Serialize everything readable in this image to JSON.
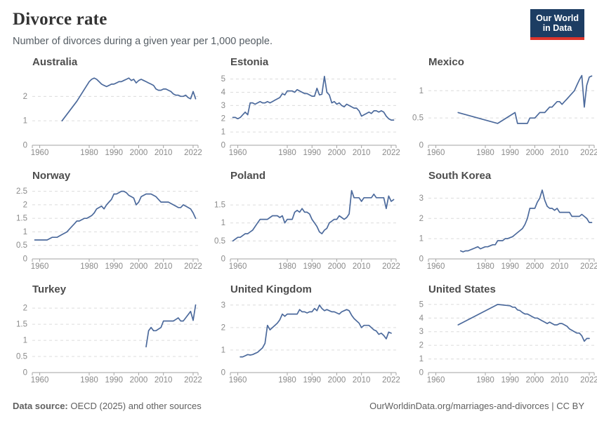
{
  "header": {
    "title": "Divorce rate",
    "subtitle": "Number of divorces during a given year per 1,000 people.",
    "logo": {
      "line1": "Our World",
      "line2": "in Data"
    }
  },
  "footer": {
    "source_label": "Data source:",
    "source_text": " OECD (2025) and other sources",
    "link": "OurWorldinData.org/marriages-and-divorces | CC BY"
  },
  "style": {
    "line_color": "#4C6A9C",
    "grid_color": "#dcdcdc",
    "axis_color": "#a3a3a3",
    "tick_label_color": "#8a8a8a",
    "logo_bg": "#1d3d63",
    "logo_accent": "#dc352c"
  },
  "chart_data": [
    {
      "type": "line",
      "title": "Australia",
      "xlim": [
        1957,
        2024
      ],
      "ylim": [
        0,
        2.9
      ],
      "xticks": [
        1960,
        1980,
        1990,
        2000,
        2010,
        2022
      ],
      "yticks": [
        0,
        1,
        2
      ],
      "x": [
        1969,
        1975,
        1980,
        1981,
        1982,
        1983,
        1984,
        1985,
        1986,
        1987,
        1988,
        1989,
        1990,
        1991,
        1992,
        1993,
        1994,
        1995,
        1996,
        1997,
        1998,
        1999,
        2000,
        2001,
        2002,
        2003,
        2004,
        2005,
        2006,
        2007,
        2008,
        2009,
        2010,
        2011,
        2012,
        2013,
        2014,
        2015,
        2016,
        2017,
        2018,
        2019,
        2020,
        2021,
        2022,
        2023
      ],
      "values": [
        1.0,
        1.8,
        2.6,
        2.7,
        2.75,
        2.7,
        2.6,
        2.5,
        2.45,
        2.4,
        2.45,
        2.5,
        2.5,
        2.55,
        2.6,
        2.6,
        2.65,
        2.7,
        2.75,
        2.65,
        2.7,
        2.55,
        2.65,
        2.7,
        2.65,
        2.6,
        2.55,
        2.5,
        2.45,
        2.3,
        2.25,
        2.25,
        2.3,
        2.3,
        2.25,
        2.2,
        2.1,
        2.05,
        2.05,
        2.0,
        2.0,
        2.05,
        1.95,
        1.9,
        2.2,
        1.9
      ]
    },
    {
      "type": "line",
      "title": "Estonia",
      "xlim": [
        1957,
        2024
      ],
      "ylim": [
        0,
        5.35
      ],
      "xticks": [
        1960,
        1980,
        1990,
        2000,
        2010,
        2022
      ],
      "yticks": [
        0,
        1,
        2,
        3,
        4,
        5
      ],
      "x": [
        1958,
        1959,
        1960,
        1961,
        1962,
        1963,
        1964,
        1965,
        1966,
        1967,
        1968,
        1969,
        1970,
        1971,
        1972,
        1973,
        1974,
        1975,
        1976,
        1977,
        1978,
        1979,
        1980,
        1981,
        1982,
        1983,
        1984,
        1985,
        1986,
        1987,
        1988,
        1989,
        1990,
        1991,
        1992,
        1993,
        1994,
        1995,
        1996,
        1997,
        1998,
        1999,
        2000,
        2001,
        2002,
        2003,
        2004,
        2005,
        2006,
        2007,
        2008,
        2009,
        2010,
        2011,
        2012,
        2013,
        2014,
        2015,
        2016,
        2017,
        2018,
        2019,
        2020,
        2021,
        2022,
        2023
      ],
      "values": [
        2.1,
        2.1,
        2.0,
        2.1,
        2.3,
        2.5,
        2.3,
        3.2,
        3.2,
        3.1,
        3.2,
        3.3,
        3.2,
        3.2,
        3.3,
        3.2,
        3.3,
        3.4,
        3.5,
        3.6,
        3.9,
        3.8,
        4.1,
        4.1,
        4.1,
        4.0,
        4.2,
        4.1,
        4.0,
        3.9,
        3.9,
        3.8,
        3.7,
        3.7,
        4.3,
        3.8,
        3.85,
        5.2,
        4.0,
        3.8,
        3.2,
        3.3,
        3.1,
        3.2,
        3.0,
        2.9,
        3.1,
        3.0,
        2.9,
        2.8,
        2.8,
        2.6,
        2.2,
        2.3,
        2.4,
        2.5,
        2.4,
        2.6,
        2.6,
        2.5,
        2.6,
        2.5,
        2.2,
        2.0,
        1.9,
        1.9
      ]
    },
    {
      "type": "line",
      "title": "Mexico",
      "xlim": [
        1957,
        2024
      ],
      "ylim": [
        0,
        1.3
      ],
      "xticks": [
        1960,
        1980,
        1990,
        2000,
        2010,
        2022
      ],
      "yticks": [
        0,
        0.5,
        1
      ],
      "x": [
        1969,
        1985,
        1992,
        1993,
        1997,
        1998,
        2000,
        2001,
        2002,
        2003,
        2004,
        2005,
        2006,
        2007,
        2008,
        2009,
        2010,
        2011,
        2012,
        2013,
        2014,
        2015,
        2016,
        2017,
        2018,
        2019,
        2020,
        2021,
        2022,
        2023
      ],
      "values": [
        0.6,
        0.4,
        0.6,
        0.4,
        0.4,
        0.5,
        0.5,
        0.55,
        0.6,
        0.6,
        0.6,
        0.65,
        0.7,
        0.7,
        0.75,
        0.8,
        0.8,
        0.75,
        0.8,
        0.85,
        0.9,
        0.95,
        1.0,
        1.1,
        1.2,
        1.28,
        0.7,
        1.1,
        1.25,
        1.27
      ]
    },
    {
      "type": "line",
      "title": "Norway",
      "xlim": [
        1957,
        2024
      ],
      "ylim": [
        0,
        2.62
      ],
      "xticks": [
        1960,
        1980,
        1990,
        2000,
        2010,
        2022
      ],
      "yticks": [
        0,
        0.5,
        1,
        1.5,
        2,
        2.5
      ],
      "x": [
        1958,
        1959,
        1960,
        1961,
        1962,
        1963,
        1964,
        1965,
        1966,
        1967,
        1968,
        1969,
        1970,
        1971,
        1972,
        1973,
        1974,
        1975,
        1976,
        1977,
        1978,
        1979,
        1980,
        1981,
        1982,
        1983,
        1984,
        1985,
        1986,
        1987,
        1988,
        1989,
        1990,
        1991,
        1992,
        1993,
        1994,
        1995,
        1996,
        1997,
        1998,
        1999,
        2000,
        2001,
        2002,
        2003,
        2004,
        2005,
        2006,
        2007,
        2008,
        2009,
        2010,
        2011,
        2012,
        2013,
        2014,
        2015,
        2016,
        2017,
        2018,
        2019,
        2020,
        2021,
        2022,
        2023
      ],
      "values": [
        0.7,
        0.7,
        0.7,
        0.7,
        0.7,
        0.7,
        0.75,
        0.8,
        0.8,
        0.8,
        0.85,
        0.9,
        0.95,
        1.0,
        1.1,
        1.2,
        1.3,
        1.4,
        1.4,
        1.45,
        1.5,
        1.5,
        1.55,
        1.6,
        1.7,
        1.85,
        1.9,
        1.95,
        1.85,
        2.0,
        2.1,
        2.2,
        2.4,
        2.4,
        2.45,
        2.5,
        2.5,
        2.45,
        2.35,
        2.3,
        2.25,
        2.0,
        2.1,
        2.3,
        2.35,
        2.4,
        2.4,
        2.4,
        2.35,
        2.3,
        2.2,
        2.1,
        2.1,
        2.1,
        2.1,
        2.05,
        2.0,
        1.95,
        1.9,
        1.9,
        2.0,
        1.95,
        1.9,
        1.85,
        1.7,
        1.5
      ]
    },
    {
      "type": "line",
      "title": "Poland",
      "xlim": [
        1957,
        2024
      ],
      "ylim": [
        0,
        1.97
      ],
      "xticks": [
        1960,
        1980,
        1990,
        2000,
        2010,
        2022
      ],
      "yticks": [
        0,
        0.5,
        1,
        1.5
      ],
      "x": [
        1958,
        1959,
        1960,
        1961,
        1962,
        1963,
        1964,
        1965,
        1966,
        1967,
        1968,
        1969,
        1970,
        1971,
        1972,
        1973,
        1974,
        1975,
        1976,
        1977,
        1978,
        1979,
        1980,
        1981,
        1982,
        1983,
        1984,
        1985,
        1986,
        1987,
        1988,
        1989,
        1990,
        1991,
        1992,
        1993,
        1994,
        1995,
        1996,
        1997,
        1998,
        1999,
        2000,
        2001,
        2002,
        2003,
        2004,
        2005,
        2006,
        2007,
        2008,
        2009,
        2010,
        2011,
        2012,
        2013,
        2014,
        2015,
        2016,
        2017,
        2018,
        2019,
        2020,
        2021,
        2022,
        2023
      ],
      "values": [
        0.5,
        0.55,
        0.6,
        0.6,
        0.65,
        0.7,
        0.7,
        0.75,
        0.8,
        0.9,
        1.0,
        1.1,
        1.1,
        1.1,
        1.1,
        1.15,
        1.2,
        1.2,
        1.2,
        1.15,
        1.2,
        1.0,
        1.1,
        1.1,
        1.1,
        1.3,
        1.35,
        1.3,
        1.4,
        1.3,
        1.3,
        1.25,
        1.1,
        1.0,
        0.9,
        0.75,
        0.7,
        0.8,
        0.85,
        1.0,
        1.05,
        1.1,
        1.1,
        1.2,
        1.15,
        1.1,
        1.15,
        1.25,
        1.9,
        1.7,
        1.7,
        1.7,
        1.6,
        1.7,
        1.7,
        1.7,
        1.7,
        1.8,
        1.7,
        1.7,
        1.7,
        1.7,
        1.4,
        1.75,
        1.6,
        1.65
      ]
    },
    {
      "type": "line",
      "title": "South Korea",
      "xlim": [
        1957,
        2024
      ],
      "ylim": [
        0,
        3.5
      ],
      "xticks": [
        1960,
        1980,
        1990,
        2000,
        2010,
        2022
      ],
      "yticks": [
        0,
        1,
        2,
        3
      ],
      "x": [
        1970,
        1971,
        1972,
        1973,
        1974,
        1975,
        1976,
        1977,
        1978,
        1979,
        1980,
        1981,
        1982,
        1983,
        1984,
        1985,
        1986,
        1987,
        1988,
        1989,
        1990,
        1991,
        1992,
        1993,
        1994,
        1995,
        1996,
        1997,
        1998,
        1999,
        2000,
        2001,
        2002,
        2003,
        2004,
        2005,
        2006,
        2007,
        2008,
        2009,
        2010,
        2011,
        2012,
        2013,
        2014,
        2015,
        2016,
        2017,
        2018,
        2019,
        2020,
        2021,
        2022,
        2023
      ],
      "values": [
        0.4,
        0.35,
        0.4,
        0.4,
        0.45,
        0.5,
        0.55,
        0.6,
        0.5,
        0.55,
        0.6,
        0.6,
        0.65,
        0.7,
        0.7,
        0.9,
        0.9,
        0.9,
        1.0,
        1.0,
        1.05,
        1.1,
        1.2,
        1.3,
        1.4,
        1.5,
        1.7,
        2.0,
        2.5,
        2.5,
        2.5,
        2.8,
        3.0,
        3.4,
        2.9,
        2.6,
        2.5,
        2.5,
        2.4,
        2.5,
        2.3,
        2.3,
        2.3,
        2.3,
        2.3,
        2.1,
        2.1,
        2.1,
        2.1,
        2.2,
        2.1,
        2.0,
        1.8,
        1.8
      ]
    },
    {
      "type": "line",
      "title": "Turkey",
      "xlim": [
        1957,
        2024
      ],
      "ylim": [
        0,
        2.2
      ],
      "xticks": [
        1960,
        1980,
        1990,
        2000,
        2010,
        2022
      ],
      "yticks": [
        0,
        0.5,
        1,
        1.5,
        2
      ],
      "x": [
        2003,
        2004,
        2005,
        2006,
        2007,
        2008,
        2009,
        2010,
        2011,
        2012,
        2013,
        2014,
        2015,
        2016,
        2017,
        2018,
        2019,
        2020,
        2021,
        2022,
        2023
      ],
      "values": [
        0.8,
        1.3,
        1.4,
        1.3,
        1.3,
        1.35,
        1.4,
        1.6,
        1.6,
        1.6,
        1.6,
        1.6,
        1.65,
        1.7,
        1.6,
        1.6,
        1.7,
        1.8,
        1.9,
        1.62,
        2.1
      ]
    },
    {
      "type": "line",
      "title": "United Kingdom",
      "xlim": [
        1957,
        2024
      ],
      "ylim": [
        0,
        3.15
      ],
      "xticks": [
        1960,
        1980,
        1990,
        2000,
        2010,
        2022
      ],
      "yticks": [
        0,
        1,
        2,
        3
      ],
      "x": [
        1961,
        1962,
        1963,
        1964,
        1965,
        1966,
        1967,
        1968,
        1969,
        1970,
        1971,
        1972,
        1973,
        1974,
        1975,
        1976,
        1977,
        1978,
        1979,
        1980,
        1981,
        1982,
        1983,
        1984,
        1985,
        1986,
        1987,
        1988,
        1989,
        1990,
        1991,
        1992,
        1993,
        1994,
        1995,
        1996,
        1997,
        1998,
        1999,
        2000,
        2001,
        2002,
        2003,
        2004,
        2005,
        2006,
        2007,
        2008,
        2009,
        2010,
        2011,
        2012,
        2013,
        2014,
        2015,
        2016,
        2017,
        2018,
        2019,
        2020,
        2021,
        2022
      ],
      "values": [
        0.7,
        0.7,
        0.75,
        0.8,
        0.78,
        0.8,
        0.85,
        0.9,
        1.0,
        1.1,
        1.3,
        2.1,
        1.9,
        2.0,
        2.1,
        2.2,
        2.35,
        2.6,
        2.5,
        2.6,
        2.6,
        2.6,
        2.6,
        2.6,
        2.8,
        2.7,
        2.7,
        2.65,
        2.7,
        2.7,
        2.85,
        2.75,
        3.0,
        2.85,
        2.75,
        2.8,
        2.75,
        2.7,
        2.7,
        2.65,
        2.6,
        2.7,
        2.75,
        2.8,
        2.75,
        2.55,
        2.4,
        2.3,
        2.2,
        2.0,
        2.1,
        2.1,
        2.1,
        2.0,
        1.9,
        1.85,
        1.7,
        1.75,
        1.65,
        1.5,
        1.8,
        1.75
      ]
    },
    {
      "type": "line",
      "title": "United States",
      "xlim": [
        1957,
        2024
      ],
      "ylim": [
        0,
        5.2
      ],
      "xticks": [
        1960,
        1980,
        1990,
        2000,
        2010,
        2022
      ],
      "yticks": [
        0,
        1,
        2,
        3,
        4,
        5
      ],
      "x": [
        1969,
        1985,
        1990,
        1991,
        1992,
        1993,
        1994,
        1995,
        1996,
        1997,
        1998,
        1999,
        2000,
        2001,
        2002,
        2003,
        2004,
        2005,
        2006,
        2007,
        2008,
        2009,
        2010,
        2011,
        2012,
        2013,
        2014,
        2015,
        2016,
        2017,
        2018,
        2019,
        2020,
        2021,
        2022
      ],
      "values": [
        3.5,
        5.0,
        4.9,
        4.8,
        4.8,
        4.6,
        4.55,
        4.4,
        4.3,
        4.3,
        4.2,
        4.1,
        4.0,
        4.0,
        3.9,
        3.8,
        3.7,
        3.6,
        3.7,
        3.6,
        3.5,
        3.5,
        3.6,
        3.6,
        3.5,
        3.4,
        3.2,
        3.1,
        3.0,
        2.9,
        2.9,
        2.7,
        2.3,
        2.5,
        2.5
      ]
    }
  ]
}
